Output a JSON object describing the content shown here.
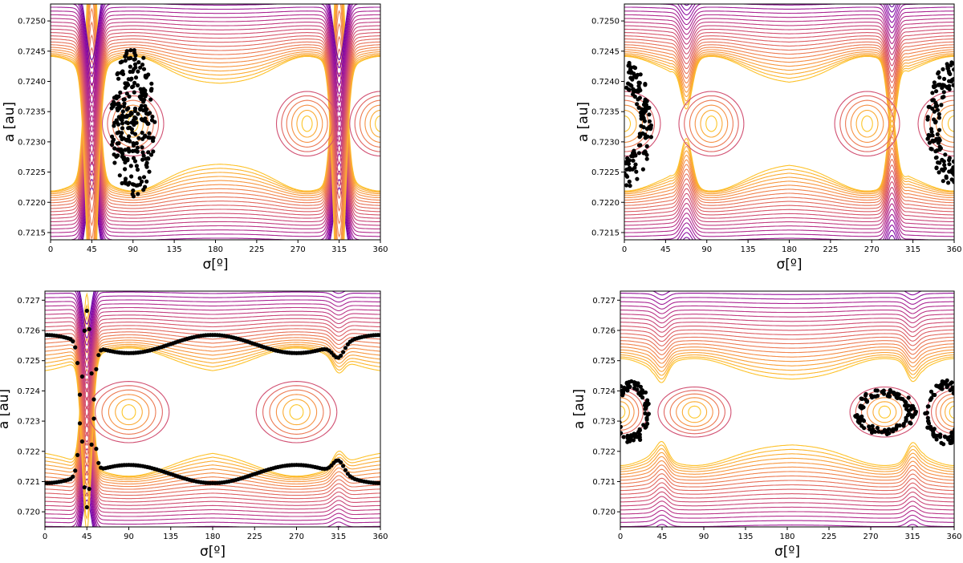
{
  "chart_data": [
    {
      "type": "contour",
      "panel": "top-left",
      "xlabel": "σ[º]",
      "ylabel": "a [au]",
      "xlim": [
        0,
        360
      ],
      "ylim": [
        0.72138,
        0.72528
      ],
      "xticks": [
        "0",
        "45",
        "90",
        "135",
        "180",
        "225",
        "270",
        "315",
        "360"
      ],
      "yticks": [
        "0.7215",
        "0.7220",
        "0.7225",
        "0.7230",
        "0.7235",
        "0.7240",
        "0.7245",
        "0.7250"
      ],
      "center": 0.7233,
      "islands": [
        {
          "x": 90,
          "width": 34,
          "height": 0.00025
        },
        {
          "x": 280,
          "width": 34,
          "height": 0.00025
        },
        {
          "x": 360,
          "width": 34,
          "height": 0.00025
        }
      ],
      "separatrix_halfwidth": 0.00058,
      "spikes": [
        {
          "x": 45,
          "amp": 0.0045,
          "w": 6
        },
        {
          "x": 315,
          "amp": 0.0045,
          "w": 6
        }
      ],
      "color_scale": "plasma",
      "particles": {
        "shape": "island",
        "x": 90,
        "width": 24,
        "amp": 0.00125
      }
    },
    {
      "type": "contour",
      "panel": "top-right",
      "xlabel": "σ[º]",
      "ylabel": "a [au]",
      "xlim": [
        0,
        360
      ],
      "ylim": [
        0.72138,
        0.72528
      ],
      "xticks": [
        "0",
        "45",
        "90",
        "135",
        "180",
        "225",
        "270",
        "315",
        "360"
      ],
      "yticks": [
        "0.7215",
        "0.7220",
        "0.7225",
        "0.7230",
        "0.7235",
        "0.7240",
        "0.7245",
        "0.7250"
      ],
      "center": 0.7233,
      "islands": [
        {
          "x": 0,
          "width": 40,
          "height": 0.00025
        },
        {
          "x": 95,
          "width": 36,
          "height": 0.00025
        },
        {
          "x": 265,
          "width": 36,
          "height": 0.00025
        },
        {
          "x": 360,
          "width": 40,
          "height": 0.00025
        }
      ],
      "separatrix_halfwidth": 0.00058,
      "spikes": [
        {
          "x": 68,
          "amp": 0.0008,
          "w": 6
        },
        {
          "x": 292,
          "amp": 0.0012,
          "w": 5
        }
      ],
      "color_scale": "plasma",
      "particles": {
        "shape": "edge-island",
        "width": 30,
        "amp": 0.00105
      }
    },
    {
      "type": "contour",
      "panel": "bottom-left",
      "xlabel": "σ[º]",
      "ylabel": "a [au]",
      "xlim": [
        0,
        360
      ],
      "ylim": [
        0.7195,
        0.7273
      ],
      "xticks": [
        "0",
        "45",
        "90",
        "135",
        "180",
        "225",
        "270",
        "315",
        "360"
      ],
      "yticks": [
        "0.720",
        "0.721",
        "0.722",
        "0.723",
        "0.724",
        "0.725",
        "0.726",
        "0.727"
      ],
      "center": 0.7233,
      "islands": [
        {
          "x": 90,
          "width": 44,
          "height": 0.00025
        },
        {
          "x": 270,
          "width": 44,
          "height": 0.00025
        }
      ],
      "separatrix_halfwidth": 0.0011,
      "spikes": [
        {
          "x": 45,
          "amp": 0.006,
          "w": 5
        },
        {
          "x": 315,
          "amp": 0.0005,
          "w": 6
        }
      ],
      "color_scale": "plasma",
      "particles": {
        "shape": "band",
        "upper": 0.72555,
        "lower": 0.72125,
        "ripple": 0.0003
      }
    },
    {
      "type": "contour",
      "panel": "bottom-right",
      "xlabel": "σ[º]",
      "ylabel": "a [au]",
      "xlim": [
        0,
        360
      ],
      "ylim": [
        0.7195,
        0.7273
      ],
      "xticks": [
        "0",
        "45",
        "90",
        "135",
        "180",
        "225",
        "270",
        "315",
        "360"
      ],
      "yticks": [
        "0.720",
        "0.721",
        "0.722",
        "0.723",
        "0.724",
        "0.725",
        "0.726",
        "0.727"
      ],
      "center": 0.7233,
      "islands": [
        {
          "x": 0,
          "width": 30,
          "height": 0.00025
        },
        {
          "x": 80,
          "width": 40,
          "height": 0.00025
        },
        {
          "x": 285,
          "width": 38,
          "height": 0.00025
        },
        {
          "x": 360,
          "width": 30,
          "height": 0.00025
        }
      ],
      "separatrix_halfwidth": 0.0009,
      "spikes": [
        {
          "x": 45,
          "amp": 0.0006,
          "w": 6
        },
        {
          "x": 315,
          "amp": 0.0006,
          "w": 6
        }
      ],
      "color_scale": "plasma",
      "particles": {
        "shape": "rings",
        "rings": [
          {
            "x": 12,
            "w": 20,
            "h": 0.00105
          },
          {
            "x": 285,
            "w": 34,
            "h": 0.00075
          },
          {
            "x": 350,
            "w": 22,
            "h": 0.0011
          }
        ]
      }
    }
  ]
}
